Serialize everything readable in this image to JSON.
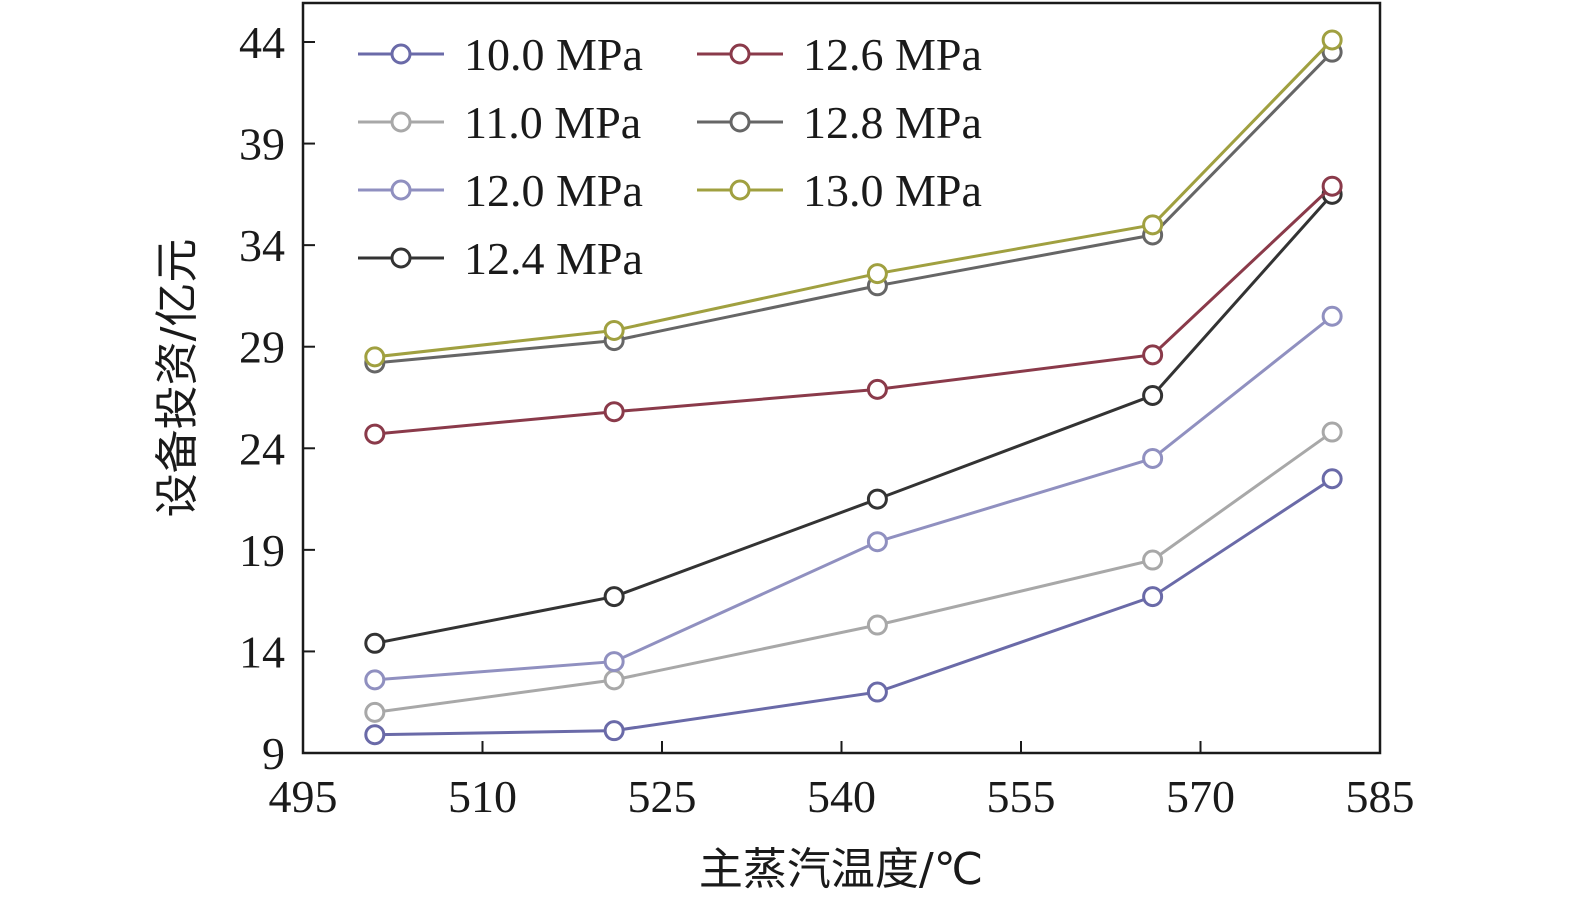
{
  "chart_data": {
    "type": "line",
    "xlabel": "主蒸汽温度/℃",
    "ylabel": "设备投资/亿元",
    "xlim": [
      495,
      585
    ],
    "ylim": [
      9,
      46
    ],
    "xticks": [
      495,
      510,
      525,
      540,
      555,
      570,
      585
    ],
    "yticks": [
      9,
      14,
      19,
      24,
      29,
      34,
      39,
      44
    ],
    "grid": false,
    "legend_position": "top-left",
    "x": [
      501,
      521,
      543,
      566,
      581
    ],
    "series": [
      {
        "name": "10.0 MPa",
        "color": "#6a6aa8",
        "values": [
          9.9,
          10.1,
          12.0,
          16.7,
          22.5
        ]
      },
      {
        "name": "11.0 MPa",
        "color": "#a8a8a8",
        "values": [
          11.0,
          12.6,
          15.3,
          18.5,
          24.8
        ]
      },
      {
        "name": "12.0 MPa",
        "color": "#9090c0",
        "values": [
          12.6,
          13.5,
          19.4,
          23.5,
          30.5
        ]
      },
      {
        "name": "12.4 MPa",
        "color": "#333333",
        "values": [
          14.4,
          16.7,
          21.5,
          26.6,
          36.5
        ]
      },
      {
        "name": "12.6 MPa",
        "color": "#8a3a4a",
        "values": [
          24.7,
          25.8,
          26.9,
          28.6,
          36.9
        ]
      },
      {
        "name": "12.8 MPa",
        "color": "#666666",
        "values": [
          28.2,
          29.3,
          32.0,
          34.5,
          43.5
        ]
      },
      {
        "name": "13.0 MPa",
        "color": "#a0a040",
        "values": [
          28.5,
          29.8,
          32.6,
          35.0,
          44.1
        ]
      }
    ]
  }
}
